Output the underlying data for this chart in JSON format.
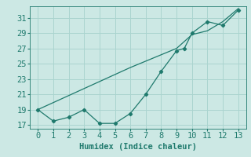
{
  "xlabel": "Humidex (Indice chaleur)",
  "background_color": "#cce8e4",
  "grid_color": "#aad4cf",
  "line_color": "#1f7a6d",
  "xlim": [
    -0.5,
    13.5
  ],
  "ylim": [
    16.5,
    32.5
  ],
  "yticks": [
    17,
    19,
    21,
    23,
    25,
    27,
    29,
    31
  ],
  "xticks": [
    0,
    1,
    2,
    3,
    4,
    5,
    6,
    7,
    8,
    9,
    10,
    11,
    12,
    13
  ],
  "line1_x": [
    0,
    1,
    2,
    3,
    4,
    5,
    6,
    7,
    8,
    9,
    9.5,
    10,
    11,
    12,
    13
  ],
  "line1_y": [
    19.0,
    17.5,
    18.0,
    19.0,
    17.2,
    17.2,
    18.5,
    21.0,
    24.0,
    26.7,
    27.0,
    29.0,
    30.5,
    30.0,
    32.0
  ],
  "line2_x": [
    0,
    6,
    9,
    10,
    11,
    12,
    13
  ],
  "line2_y": [
    19.0,
    24.5,
    27.0,
    28.8,
    29.3,
    30.5,
    32.2
  ],
  "font_size": 7.5
}
